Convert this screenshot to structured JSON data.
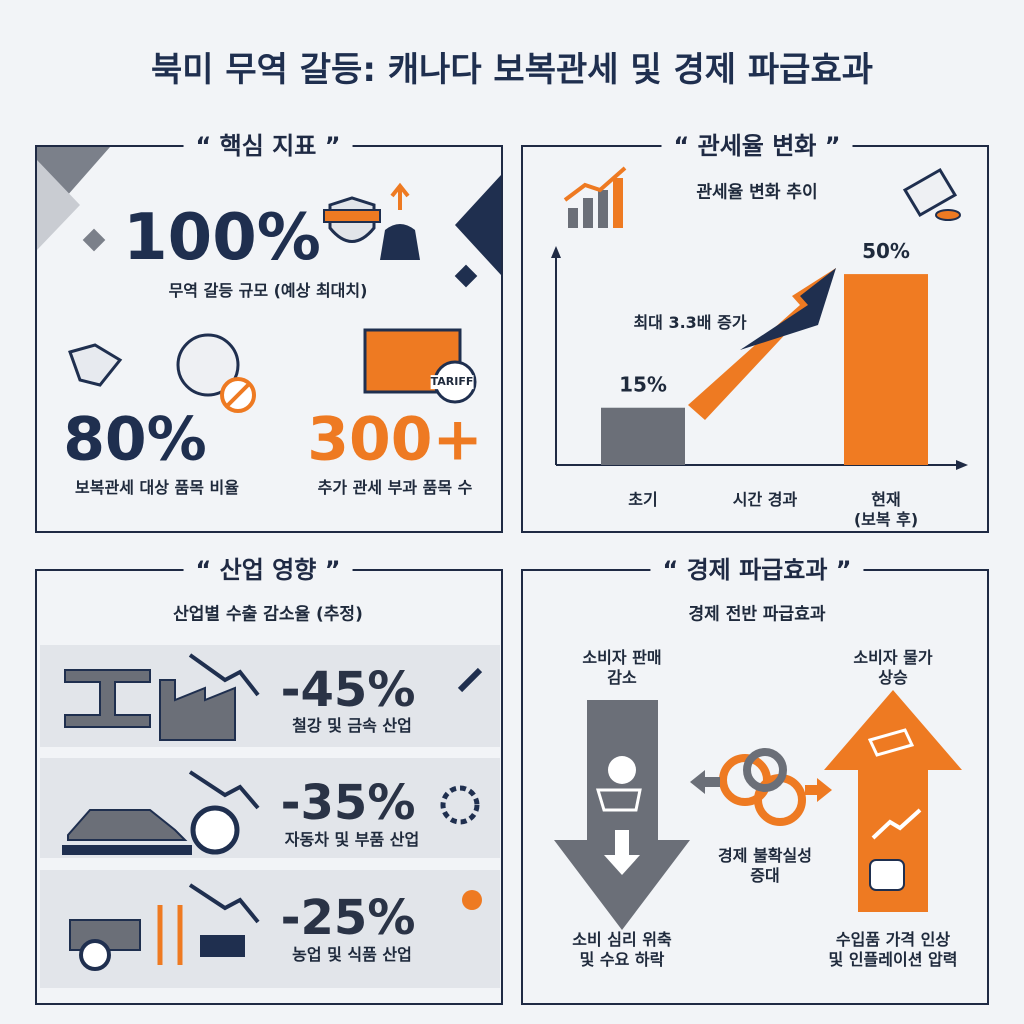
{
  "title": "북미 무역 갈등: 캐나다 보복관세 및 경제 파급효과",
  "key_metrics": {
    "heading": "“ 핵심 지표 ”",
    "items": [
      {
        "value": "100%",
        "label": "무역 갈등 규모 (예상 최대치)"
      },
      {
        "value": "80%",
        "label": "보복관세 대상 품목 비율"
      },
      {
        "value": "300+",
        "label": "추가 관세 부과 품목 수"
      }
    ],
    "icon_text": "TARIFF"
  },
  "tariff_change": {
    "heading": "“ 관세율 변화 ”",
    "subtitle": "관세율 변화 추이",
    "annotation": "최대 3.3배 증가",
    "chart": {
      "type": "bar",
      "categories": [
        "초기",
        "시간 경과",
        "현재\n(보복 후)"
      ],
      "values": [
        15,
        null,
        50
      ],
      "value_labels": [
        "15%",
        null,
        "50%"
      ],
      "colors": [
        "#6b6f78",
        null,
        "#f07b22"
      ],
      "ylim": [
        0,
        55
      ]
    }
  },
  "industry_impact": {
    "heading": "“ 산업 영향 ”",
    "subtitle": "산업별 수출 감소율 (추정)",
    "rows": [
      {
        "value": "-45%",
        "label": "철강 및 금속 산업"
      },
      {
        "value": "-35%",
        "label": "자동차 및 부품 산업"
      },
      {
        "value": "-25%",
        "label": "농업 및 식품 산업"
      }
    ]
  },
  "economic_effects": {
    "heading": "“ 경제 파급효과 ”",
    "subtitle": "경제 전반 파급효과",
    "left_top": "소비자 판매\n감소",
    "left_bottom": "소비 심리 위축\n및 수요 하락",
    "center": "경제 불확실성\n증대",
    "right_top": "소비자 물가\n상승",
    "right_bottom": "수입품 가격 인상\n및 인플레이션 압력"
  }
}
